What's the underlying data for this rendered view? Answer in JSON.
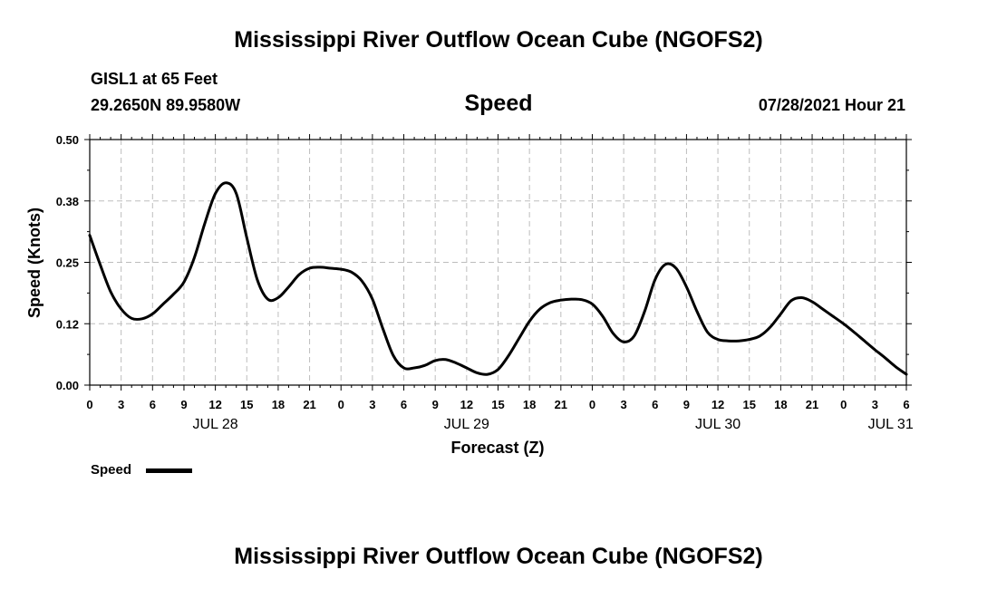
{
  "header": {
    "title": "Mississippi River Outflow Ocean Cube (NGOFS2)",
    "station": "GISL1 at 65 Feet",
    "coords": "29.2650N  89.9580W",
    "variable": "Speed",
    "timestamp": "07/28/2021 Hour 21"
  },
  "footer": {
    "title": "Mississippi River Outflow Ocean Cube (NGOFS2)"
  },
  "legend": {
    "label": "Speed"
  },
  "chart_data": {
    "type": "line",
    "title": "Speed",
    "xlabel": "Forecast (Z)",
    "ylabel": "Speed (Knots)",
    "ylim": [
      0,
      0.5
    ],
    "y_ticks": [
      "0.00",
      "0.12",
      "0.25",
      "0.38",
      "0.50"
    ],
    "x_range_hours": [
      0,
      78
    ],
    "x_tick_labels": [
      "0",
      "3",
      "6",
      "9",
      "12",
      "15",
      "18",
      "21",
      "0",
      "3",
      "6",
      "9",
      "12",
      "15",
      "18",
      "21",
      "0",
      "3",
      "6",
      "9",
      "12",
      "15",
      "18",
      "21",
      "0",
      "3",
      "6"
    ],
    "date_labels": [
      {
        "label": "JUL 28",
        "hour": 12
      },
      {
        "label": "JUL 29",
        "hour": 36
      },
      {
        "label": "JUL 30",
        "hour": 60
      },
      {
        "label": "JUL 31",
        "hour": 76.5
      }
    ],
    "grid": true,
    "series": [
      {
        "name": "Speed",
        "color": "#000000",
        "points": [
          [
            0,
            0.305
          ],
          [
            1,
            0.245
          ],
          [
            2,
            0.19
          ],
          [
            3,
            0.155
          ],
          [
            4,
            0.136
          ],
          [
            5,
            0.135
          ],
          [
            6,
            0.145
          ],
          [
            7,
            0.165
          ],
          [
            8,
            0.185
          ],
          [
            9,
            0.21
          ],
          [
            10,
            0.26
          ],
          [
            11,
            0.33
          ],
          [
            12,
            0.39
          ],
          [
            13,
            0.412
          ],
          [
            14,
            0.39
          ],
          [
            15,
            0.3
          ],
          [
            16,
            0.215
          ],
          [
            17,
            0.175
          ],
          [
            18,
            0.178
          ],
          [
            19,
            0.2
          ],
          [
            20,
            0.225
          ],
          [
            21,
            0.238
          ],
          [
            22,
            0.24
          ],
          [
            23,
            0.238
          ],
          [
            24,
            0.236
          ],
          [
            25,
            0.23
          ],
          [
            26,
            0.212
          ],
          [
            27,
            0.175
          ],
          [
            28,
            0.115
          ],
          [
            29,
            0.06
          ],
          [
            30,
            0.035
          ],
          [
            31,
            0.035
          ],
          [
            32,
            0.04
          ],
          [
            33,
            0.05
          ],
          [
            34,
            0.052
          ],
          [
            35,
            0.045
          ],
          [
            36,
            0.035
          ],
          [
            37,
            0.025
          ],
          [
            38,
            0.022
          ],
          [
            39,
            0.032
          ],
          [
            40,
            0.06
          ],
          [
            41,
            0.095
          ],
          [
            42,
            0.13
          ],
          [
            43,
            0.155
          ],
          [
            44,
            0.168
          ],
          [
            45,
            0.173
          ],
          [
            46,
            0.175
          ],
          [
            47,
            0.174
          ],
          [
            48,
            0.165
          ],
          [
            49,
            0.14
          ],
          [
            50,
            0.105
          ],
          [
            51,
            0.088
          ],
          [
            52,
            0.1
          ],
          [
            53,
            0.15
          ],
          [
            54,
            0.215
          ],
          [
            55,
            0.246
          ],
          [
            56,
            0.238
          ],
          [
            57,
            0.2
          ],
          [
            58,
            0.15
          ],
          [
            59,
            0.108
          ],
          [
            60,
            0.093
          ],
          [
            61,
            0.09
          ],
          [
            62,
            0.09
          ],
          [
            63,
            0.093
          ],
          [
            64,
            0.1
          ],
          [
            65,
            0.118
          ],
          [
            66,
            0.145
          ],
          [
            67,
            0.172
          ],
          [
            68,
            0.178
          ],
          [
            69,
            0.17
          ],
          [
            70,
            0.155
          ],
          [
            71,
            0.14
          ],
          [
            72,
            0.125
          ],
          [
            73,
            0.108
          ],
          [
            74,
            0.09
          ],
          [
            75,
            0.072
          ],
          [
            76,
            0.055
          ],
          [
            77,
            0.037
          ],
          [
            78,
            0.022
          ]
        ]
      }
    ]
  }
}
